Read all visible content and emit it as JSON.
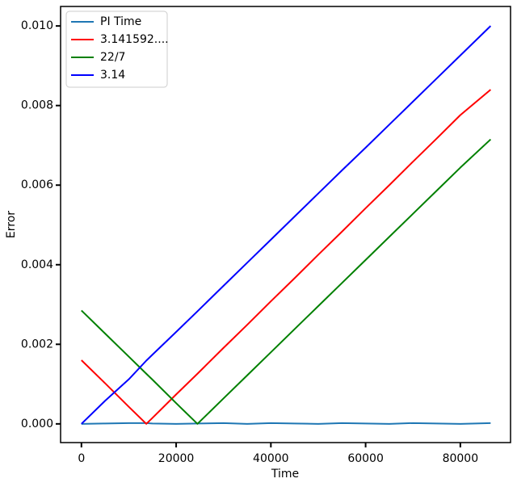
{
  "chart_data": {
    "type": "line",
    "x_label": "Time",
    "y_label": "Error",
    "x": [
      0,
      5000,
      10000,
      13700,
      15000,
      20000,
      24500,
      30000,
      35000,
      40000,
      45000,
      50000,
      55000,
      60000,
      65000,
      70000,
      75000,
      80000,
      86400
    ],
    "series": [
      {
        "name": "PI Time",
        "color": "#1f77b4",
        "values": [
          0,
          1e-05,
          2e-05,
          2e-05,
          1e-05,
          0,
          1e-05,
          2e-05,
          0,
          2e-05,
          1e-05,
          0,
          2e-05,
          1e-05,
          0,
          2e-05,
          1e-05,
          0,
          2e-05
        ]
      },
      {
        "name": "3.141592....",
        "color": "#ff0000",
        "values": [
          0.0016,
          0.00102,
          0.00043,
          0,
          0.00015,
          0.00074,
          0.00126,
          0.00191,
          0.00249,
          0.00308,
          0.00366,
          0.00425,
          0.00483,
          0.00542,
          0.006,
          0.00659,
          0.00717,
          0.00776,
          0.0084
        ]
      },
      {
        "name": "22/7",
        "color": "#008000",
        "values": [
          0.00285,
          0.00227,
          0.00169,
          0.00126,
          0.00111,
          0.00052,
          0,
          0.00064,
          0.00122,
          0.0018,
          0.00238,
          0.00296,
          0.00354,
          0.00412,
          0.0047,
          0.00528,
          0.00586,
          0.00644,
          0.00715
        ]
      },
      {
        "name": "3.14",
        "color": "#0000ff",
        "values": [
          0,
          0.00058,
          0.00112,
          0.00159,
          0.00174,
          0.00231,
          0.00283,
          0.00347,
          0.00405,
          0.00463,
          0.00521,
          0.00579,
          0.00637,
          0.00694,
          0.00752,
          0.0081,
          0.00868,
          0.00926,
          0.01
        ]
      }
    ],
    "xlim": [
      -4400,
      90600
    ],
    "ylim": [
      -0.00047,
      0.01049
    ],
    "xticks": [
      0,
      20000,
      40000,
      60000,
      80000
    ],
    "yticks": [
      {
        "value": 0,
        "label": "0.000"
      },
      {
        "value": 0.002,
        "label": "0.002"
      },
      {
        "value": 0.004,
        "label": "0.004"
      },
      {
        "value": 0.006,
        "label": "0.006"
      },
      {
        "value": 0.008,
        "label": "0.008"
      },
      {
        "value": 0.01,
        "label": "0.010"
      }
    ],
    "legend": "upper left",
    "grid": false
  }
}
